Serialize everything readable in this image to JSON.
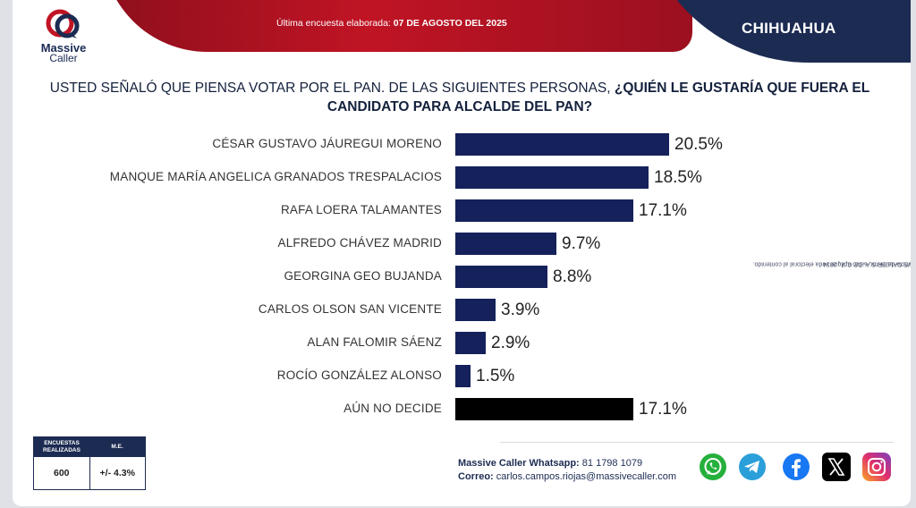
{
  "header": {
    "last_poll_prefix": "Última encuesta elaborada: ",
    "last_poll_date": "07 DE AGOSTO DEL 2025",
    "state": "CHIHUAHUA"
  },
  "logo": {
    "line1": "Massive",
    "line2": "Caller"
  },
  "question": {
    "part1": "USTED SEÑALÓ QUE PIENSA VOTAR POR EL PAN. DE LAS SIGUIENTES PERSONAS, ",
    "part2": "¿QUIÉN LE GUSTARÍA QUE FUERA EL CANDIDATO PARA ALCALDE DEL PAN?"
  },
  "colors": {
    "bar": "#14215a",
    "undecided_bar": "#000000",
    "red": "#c01424",
    "navy": "#1c2b52"
  },
  "chart_data": {
    "type": "bar",
    "orientation": "horizontal",
    "categories": [
      "CÉSAR GUSTAVO JÁUREGUI MORENO",
      "MANQUE MARÍA ANGELICA GRANADOS TRESPALACIOS",
      "RAFA LOERA TALAMANTES",
      "ALFREDO CHÁVEZ MADRID",
      "GEORGINA GEO BUJANDA",
      "CARLOS OLSON SAN VICENTE",
      "ALAN FALOMIR SÁENZ",
      "ROCÍO GONZÁLEZ ALONSO",
      "AÚN NO DECIDE"
    ],
    "values": [
      20.5,
      18.5,
      17.1,
      9.7,
      8.8,
      3.9,
      2.9,
      1.5,
      17.1
    ],
    "value_labels": [
      "20.5%",
      "18.5%",
      "17.1%",
      "9.7%",
      "8.8%",
      "3.9%",
      "2.9%",
      "1.5%",
      "17.1%"
    ],
    "xlim": [
      0,
      20.5
    ],
    "grid": false
  },
  "side_note": {
    "line1": "D.R. (C) MASSIVE CALLER S.A. DE C.V., 2024",
    "line2": "Se autoriza la reproducción al hacer referencia del autor, salvo aplique veda electoral al contenido."
  },
  "stats": {
    "col1_header": "ENCUESTAS REALIZADAS",
    "col2_header": "M.E.",
    "col1_value": "600",
    "col2_value": "+/- 4.3%"
  },
  "contact": {
    "whatsapp_label": "Massive Caller Whatsapp:",
    "whatsapp_number": "81 1798 1079",
    "email_label": "Correo:",
    "email": "carlos.campos.riojas@massivecaller.com"
  },
  "social": [
    {
      "icon": "whatsapp-icon",
      "color": "#25b03c"
    },
    {
      "icon": "telegram-icon",
      "color": "#2a9fd9"
    },
    {
      "icon": "facebook-icon",
      "color": "#1877f2"
    },
    {
      "icon": "x-icon",
      "color": "#000000"
    },
    {
      "icon": "instagram-icon",
      "color": "#c13584"
    }
  ]
}
